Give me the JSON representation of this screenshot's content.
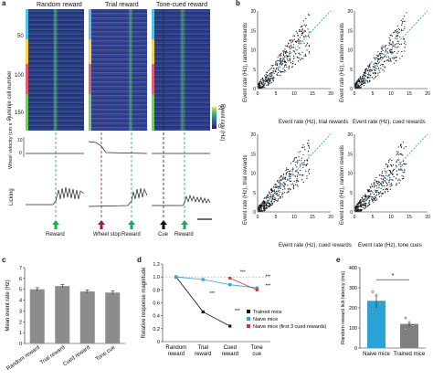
{
  "panels": {
    "a": "a",
    "b": "b",
    "c": "c",
    "d": "d",
    "e": "e"
  },
  "panel_a": {
    "titles": [
      "Random reward",
      "Trial reward",
      "Tone-cued reward"
    ],
    "yticks": [
      "50",
      "100",
      "150"
    ],
    "ylabel": "Purkinje cell number",
    "colorbar": {
      "top": "20",
      "bottom": "0",
      "label": "Event rate (Hz)"
    },
    "velocity_label": "Wheel velocity (cm s⁻¹)",
    "velocity_ticks": [
      "0",
      "10"
    ],
    "licking_label": "Licking",
    "events": [
      "Reward",
      "Wheel stop",
      "Reward",
      "Cue",
      "Reward"
    ]
  },
  "panel_b": {
    "plots": [
      {
        "xlabel": "Event rate (Hz), trial rewards",
        "ylabel": "Event rate (Hz), random rewards"
      },
      {
        "xlabel": "Event rate (Hz), cued rewards",
        "ylabel": "Event rate (Hz), random rewards"
      },
      {
        "xlabel": "Event rate (Hz), cued rewards",
        "ylabel": "Event rate (Hz), trial rewards"
      },
      {
        "xlabel": "Event rate (Hz), tone cues",
        "ylabel": "Event rate (Hz), random rewards"
      }
    ],
    "ticks": [
      "0",
      "5",
      "10",
      "15",
      "20"
    ]
  },
  "colors": {
    "bar_gray": "#8c8c8c",
    "naive_blue": "#29a3d6",
    "trained_gray": "#808080",
    "red": "#d9342b",
    "green": "#1faa55",
    "maroon": "#9b1b4a"
  },
  "chart_data": [
    {
      "type": "bar",
      "panel": "c",
      "categories": [
        "Random reward",
        "Trial reward",
        "Cued reward",
        "Tone cue"
      ],
      "values": [
        5.0,
        5.3,
        4.8,
        4.7
      ],
      "errors": [
        0.15,
        0.15,
        0.15,
        0.15
      ],
      "ylabel": "Mean event rate (Hz)",
      "ylim": [
        0,
        7
      ],
      "yticks": [
        "0",
        "1",
        "2",
        "3",
        "4",
        "5",
        "6",
        "7"
      ]
    },
    {
      "type": "line",
      "panel": "d",
      "categories": [
        "Random reward",
        "Trial reward",
        "Cued reward",
        "Tone cue"
      ],
      "series": [
        {
          "name": "Trained mice",
          "values": [
            1.0,
            0.46,
            0.24,
            null
          ]
        },
        {
          "name": "Naive mice",
          "values": [
            1.0,
            0.96,
            0.88,
            0.83
          ]
        },
        {
          "name": "Naive mice (first 3 cued rewards)",
          "values": [
            null,
            null,
            0.98,
            0.8
          ]
        }
      ],
      "ylabel": "Relative response magnitude",
      "ylim": [
        0,
        1.2
      ],
      "yticks": [
        "0",
        "0.2",
        "0.4",
        "0.6",
        "0.8",
        "1.0",
        "1.2"
      ],
      "significance": [
        "***",
        "***",
        "***",
        "***",
        "***"
      ]
    },
    {
      "type": "bar",
      "panel": "e",
      "categories": [
        "Naive mice",
        "Trained mice"
      ],
      "values": [
        235,
        120
      ],
      "errors": [
        35,
        15
      ],
      "points": [
        [
          280,
          260,
          220,
          180
        ],
        [
          150,
          125,
          110,
          95
        ]
      ],
      "ylabel": "Random reward lick latency (ms)",
      "ylim": [
        0,
        400
      ],
      "yticks": [
        "0",
        "100",
        "200",
        "300",
        "400"
      ],
      "significance": "*"
    }
  ]
}
